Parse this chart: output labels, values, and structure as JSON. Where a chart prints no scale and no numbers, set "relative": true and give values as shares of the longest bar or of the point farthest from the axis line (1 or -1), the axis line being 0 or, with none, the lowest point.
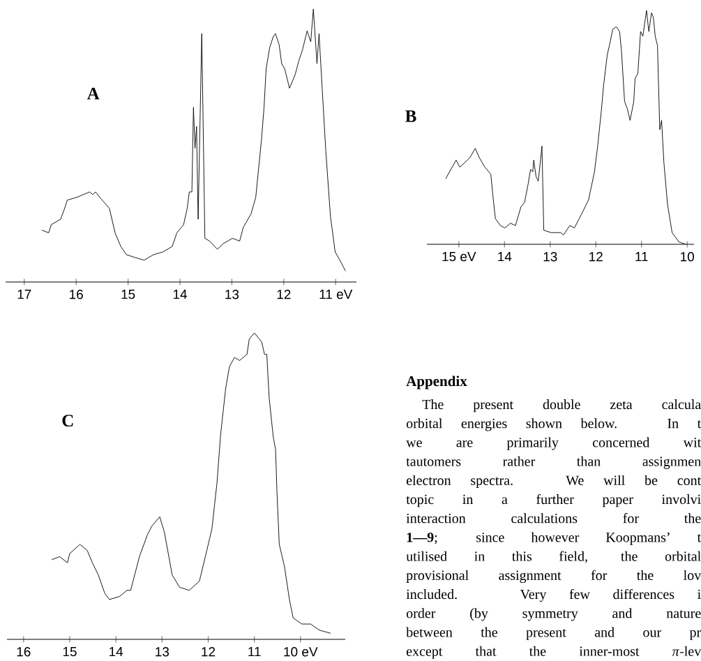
{
  "chart_data": [
    {
      "type": "line",
      "title": "A",
      "relative": true,
      "color": "#000000",
      "xlim": [
        17.36,
        10.6
      ],
      "xticks": [
        17,
        16,
        15,
        14,
        13,
        12,
        {
          "value": 11,
          "label": "11 eV"
        }
      ],
      "x": [
        16.66,
        16.53,
        16.48,
        16.3,
        16.24,
        16.17,
        15.99,
        15.74,
        15.68,
        15.63,
        15.5,
        15.36,
        15.25,
        15.14,
        15.03,
        14.87,
        14.69,
        14.51,
        14.33,
        14.15,
        14.06,
        13.93,
        13.86,
        13.82,
        13.77,
        13.74,
        13.71,
        13.68,
        13.65,
        13.58,
        13.52,
        13.43,
        13.28,
        13.17,
        12.99,
        12.85,
        12.78,
        12.63,
        12.54,
        12.43,
        12.38,
        12.34,
        12.27,
        12.2,
        12.16,
        12.09,
        12.04,
        11.98,
        11.89,
        11.78,
        11.71,
        11.64,
        11.55,
        11.48,
        11.43,
        11.36,
        11.32,
        11.26,
        11.19,
        11.1,
        11.01,
        10.92,
        10.81
      ],
      "values": [
        0.19,
        0.18,
        0.21,
        0.23,
        0.26,
        0.3,
        0.31,
        0.33,
        0.32,
        0.33,
        0.3,
        0.27,
        0.18,
        0.13,
        0.1,
        0.09,
        0.08,
        0.1,
        0.11,
        0.13,
        0.18,
        0.21,
        0.27,
        0.33,
        0.33,
        0.64,
        0.49,
        0.57,
        0.23,
        0.91,
        0.16,
        0.15,
        0.12,
        0.14,
        0.16,
        0.15,
        0.2,
        0.25,
        0.31,
        0.52,
        0.64,
        0.78,
        0.86,
        0.9,
        0.91,
        0.87,
        0.8,
        0.78,
        0.71,
        0.76,
        0.81,
        0.85,
        0.92,
        0.88,
        1,
        0.8,
        0.91,
        0.71,
        0.48,
        0.24,
        0.11,
        0.08,
        0.04
      ]
    },
    {
      "type": "line",
      "title": "B",
      "relative": true,
      "color": "#000000",
      "xlim": [
        15.7,
        9.85
      ],
      "xticks": [
        {
          "value": 15,
          "label": "15 eV"
        },
        14,
        13,
        12,
        11,
        10
      ],
      "x": [
        15.29,
        15.06,
        14.98,
        14.76,
        14.64,
        14.55,
        14.43,
        14.3,
        14.25,
        14.2,
        14.09,
        13.99,
        13.87,
        13.76,
        13.64,
        13.56,
        13.48,
        13.43,
        13.38,
        13.36,
        13.31,
        13.26,
        13.18,
        13.14,
        12.98,
        12.77,
        12.71,
        12.57,
        12.47,
        12.31,
        12.16,
        12.03,
        11.96,
        11.88,
        11.83,
        11.75,
        11.68,
        11.63,
        11.55,
        11.48,
        11.44,
        11.37,
        11.31,
        11.25,
        11.17,
        11.14,
        11.08,
        11.02,
        10.97,
        10.89,
        10.84,
        10.78,
        10.74,
        10.7,
        10.65,
        10.6,
        10.56,
        10.51,
        10.43,
        10.33,
        10.18,
        10.03
      ],
      "values": [
        0.28,
        0.36,
        0.33,
        0.37,
        0.41,
        0.37,
        0.33,
        0.3,
        0.2,
        0.11,
        0.08,
        0.07,
        0.09,
        0.08,
        0.16,
        0.18,
        0.26,
        0.32,
        0.31,
        0.36,
        0.29,
        0.27,
        0.42,
        0.06,
        0.05,
        0.05,
        0.04,
        0.08,
        0.07,
        0.13,
        0.19,
        0.31,
        0.42,
        0.57,
        0.68,
        0.81,
        0.87,
        0.92,
        0.93,
        0.91,
        0.83,
        0.61,
        0.58,
        0.53,
        0.61,
        0.71,
        0.73,
        0.91,
        0.89,
        1,
        0.91,
        0.99,
        0.97,
        0.89,
        0.85,
        0.49,
        0.53,
        0.35,
        0.17,
        0.05,
        0.01,
        0
      ]
    },
    {
      "type": "line",
      "title": "C",
      "relative": true,
      "color": "#000000",
      "xlim": [
        16.36,
        9.03
      ],
      "xticks": [
        16,
        15,
        14,
        13,
        12,
        11,
        {
          "value": 10,
          "label": "10 eV"
        }
      ],
      "x": [
        15.39,
        15.22,
        15.05,
        15.0,
        14.78,
        14.62,
        14.51,
        14.38,
        14.24,
        14.14,
        13.92,
        13.76,
        13.68,
        13.49,
        13.32,
        13.22,
        13.05,
        12.95,
        12.78,
        12.62,
        12.41,
        12.19,
        12.03,
        11.92,
        11.81,
        11.73,
        11.62,
        11.54,
        11.43,
        11.32,
        11.16,
        11.11,
        11.0,
        10.89,
        10.84,
        10.78,
        10.73,
        10.68,
        10.59,
        10.54,
        10.51,
        10.46,
        10.35,
        10.24,
        10.16,
        9.97,
        9.78,
        9.59,
        9.35
      ],
      "values": [
        0.26,
        0.27,
        0.25,
        0.28,
        0.31,
        0.29,
        0.25,
        0.21,
        0.15,
        0.13,
        0.14,
        0.16,
        0.16,
        0.27,
        0.34,
        0.37,
        0.4,
        0.35,
        0.21,
        0.17,
        0.16,
        0.19,
        0.29,
        0.36,
        0.51,
        0.67,
        0.82,
        0.89,
        0.92,
        0.91,
        0.93,
        0.98,
        1,
        0.98,
        0.97,
        0.93,
        0.93,
        0.79,
        0.66,
        0.62,
        0.48,
        0.31,
        0.24,
        0.13,
        0.07,
        0.05,
        0.05,
        0.03,
        0.02
      ]
    },
    {
      "type": "other",
      "title": "Appendix",
      "annotations": [
        "The present double zeta calcula",
        "orbital energies shown below. In t",
        "we are primarily concerned wit",
        "tautomers rather than assignmen",
        "electron spectra. We will be cont",
        "topic in a further paper involvi",
        "interaction calculations for the",
        "**1—9**; since however Koopmans’ t",
        "utilised in this field, the orbital",
        "provisional assignment for the lov",
        "included. Very few differences i",
        "order (by symmetry and nature",
        "between the present and our pr",
        "except that the inner-most *π*-lev"
      ]
    }
  ]
}
